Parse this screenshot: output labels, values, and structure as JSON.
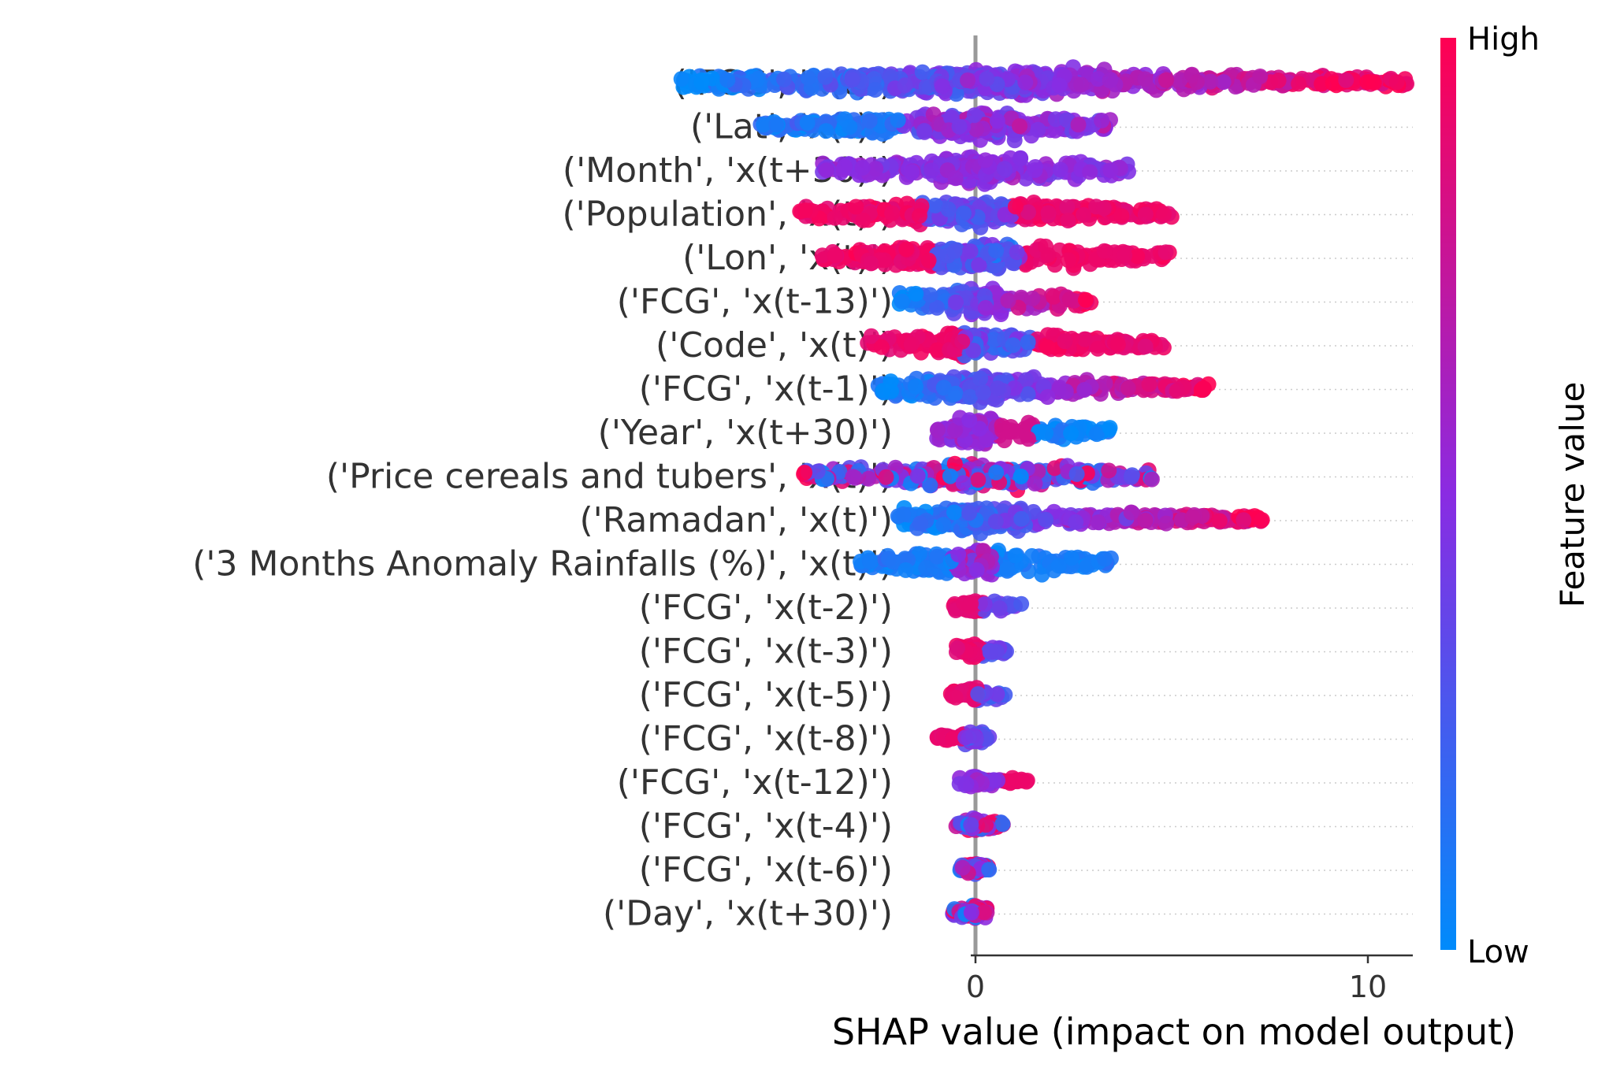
{
  "chart_data": {
    "type": "scatter",
    "subtype": "shap-beeswarm",
    "title": "",
    "xlabel": "SHAP value (impact on model output)",
    "ylabel": "",
    "xlim": [
      -8.2,
      12
    ],
    "xticks": [
      0,
      10
    ],
    "grid": false,
    "colorbar": {
      "title": "Feature value",
      "high_label": "High",
      "low_label": "Low",
      "low_color": "#008bfb",
      "mid_color": "#8a2be2",
      "high_color": "#ff0052"
    },
    "features": [
      {
        "name": "('FCG', 'x(t)')",
        "min": -7.5,
        "max": 11,
        "pattern": "low-left-high-right"
      },
      {
        "name": "('Lat', 'x(t)')",
        "min": -5.5,
        "max": 3.5,
        "pattern": "low-left-mixed"
      },
      {
        "name": "('Month', 'x(t+30)')",
        "min": -4,
        "max": 4,
        "pattern": "mid"
      },
      {
        "name": "('Population', 'x(t)')",
        "min": -4.5,
        "max": 5,
        "pattern": "high-tails"
      },
      {
        "name": "('Lon', 'x(t)')",
        "min": -4,
        "max": 5,
        "pattern": "high-tails"
      },
      {
        "name": "('FCG', 'x(t-13)')",
        "min": -2,
        "max": 3,
        "pattern": "low-left-high-right"
      },
      {
        "name": "('Code', 'x(t)')",
        "min": -2.8,
        "max": 4.8,
        "pattern": "high-tails"
      },
      {
        "name": "('FCG', 'x(t-1)')",
        "min": -2.5,
        "max": 6,
        "pattern": "low-left-high-right"
      },
      {
        "name": "('Year', 'x(t+30)')",
        "min": -1,
        "max": 3.5,
        "pattern": "high-mid-low-right"
      },
      {
        "name": "('Price cereals and tubers', 'x(t)')",
        "min": -4.5,
        "max": 4.5,
        "pattern": "mixed"
      },
      {
        "name": "('Ramadan', 'x(t)')",
        "min": -2,
        "max": 7.5,
        "pattern": "low-left-high-right"
      },
      {
        "name": "('3 Months Anomaly Rainfalls (%)', 'x(t)')",
        "min": -3,
        "max": 3.5,
        "pattern": "low-wide-mid-center"
      },
      {
        "name": "('FCG', 'x(t-2)')",
        "min": -0.8,
        "max": 1.2,
        "pattern": "high-left"
      },
      {
        "name": "('FCG', 'x(t-3)')",
        "min": -0.5,
        "max": 0.8,
        "pattern": "high-left"
      },
      {
        "name": "('FCG', 'x(t-5)')",
        "min": -0.7,
        "max": 0.8,
        "pattern": "high-left"
      },
      {
        "name": "('FCG', 'x(t-8)')",
        "min": -1,
        "max": 0.4,
        "pattern": "high-left"
      },
      {
        "name": "('FCG', 'x(t-12)')",
        "min": -0.5,
        "max": 1.4,
        "pattern": "high-right"
      },
      {
        "name": "('FCG', 'x(t-4)')",
        "min": -0.5,
        "max": 0.7,
        "pattern": "mixed"
      },
      {
        "name": "('FCG', 'x(t-6)')",
        "min": -0.4,
        "max": 0.4,
        "pattern": "mixed"
      },
      {
        "name": "('Day', 'x(t+30)')",
        "min": -0.6,
        "max": 0.3,
        "pattern": "mixed"
      }
    ]
  }
}
